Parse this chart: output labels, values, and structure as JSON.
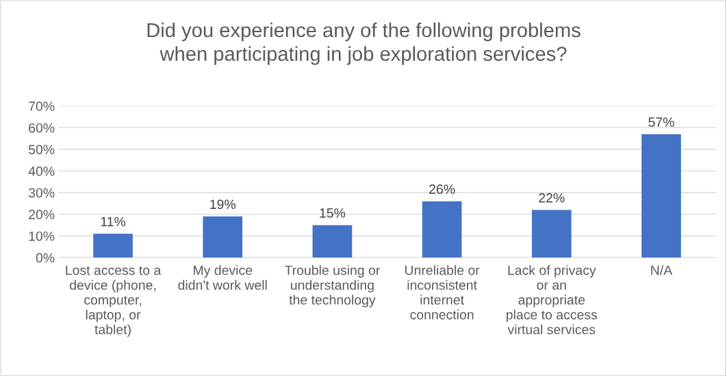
{
  "chart_data": {
    "type": "bar",
    "title": "Did you experience any of the following problems\nwhen participating in job exploration services?",
    "categories": [
      "Lost access to a\ndevice (phone,\ncomputer,\nlaptop, or\ntablet)",
      "My device\ndidn't work well",
      "Trouble using or\nunderstanding\nthe technology",
      "Unreliable or\ninconsistent\ninternet\nconnection",
      "Lack of privacy\nor an\nappropriate\nplace to access\nvirtual services",
      "N/A"
    ],
    "values": [
      11,
      19,
      15,
      26,
      22,
      57
    ],
    "value_labels": [
      "11%",
      "19%",
      "15%",
      "26%",
      "22%",
      "57%"
    ],
    "color": "#4472c4",
    "ylim": [
      0,
      70
    ],
    "yticks": [
      {
        "value": 0,
        "label": "0%"
      },
      {
        "value": 10,
        "label": "10%"
      },
      {
        "value": 20,
        "label": "20%"
      },
      {
        "value": 30,
        "label": "30%"
      },
      {
        "value": 40,
        "label": "40%"
      },
      {
        "value": 50,
        "label": "50%"
      },
      {
        "value": 60,
        "label": "60%"
      },
      {
        "value": 70,
        "label": "70%"
      }
    ],
    "grid": "y",
    "legend": false
  }
}
